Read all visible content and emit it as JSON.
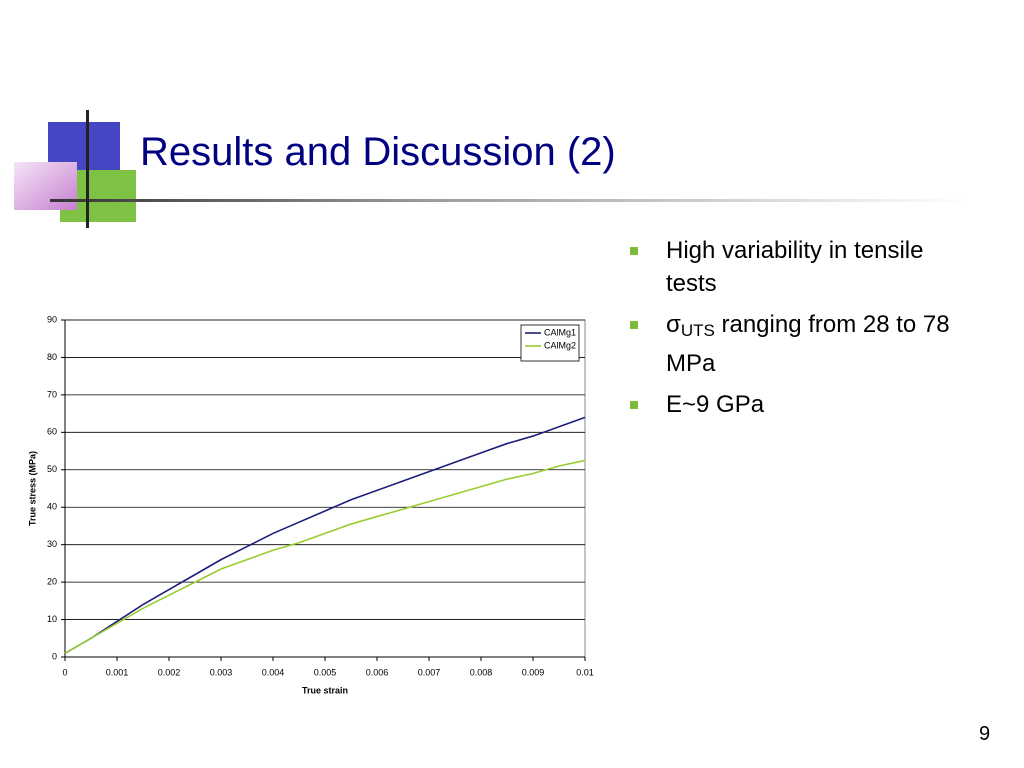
{
  "title": "Results and Discussion (2)",
  "bullets": [
    {
      "text": "High variability in tensile tests"
    },
    {
      "symbol": "σ",
      "subscript": "UTS",
      "text": "ranging from 28 to 78 MPa"
    },
    {
      "text": "E~9 GPa"
    }
  ],
  "page_number": "9",
  "chart_data": {
    "type": "line",
    "xlabel": "True strain",
    "ylabel": "True stress (MPa)",
    "x": [
      0,
      0.0005,
      0.001,
      0.0015,
      0.002,
      0.0025,
      0.003,
      0.0035,
      0.004,
      0.0045,
      0.005,
      0.0055,
      0.006,
      0.0065,
      0.007,
      0.0075,
      0.008,
      0.0085,
      0.009,
      0.0095,
      0.01
    ],
    "series": [
      {
        "name": "CAlMg1",
        "color": "#1c1f7a",
        "values": [
          1,
          5,
          9.5,
          14,
          18,
          22,
          26,
          29.5,
          33,
          36,
          39,
          42,
          44.5,
          47,
          49.5,
          52,
          54.5,
          57,
          59,
          61.5,
          64
        ]
      },
      {
        "name": "CAlMg2",
        "color": "#9acd32",
        "values": [
          1,
          5,
          9,
          13,
          16.5,
          20,
          23.5,
          26,
          28.5,
          30.5,
          33,
          35.5,
          37.5,
          39.5,
          41.5,
          43.5,
          45.5,
          47.5,
          49,
          51,
          52.5
        ]
      }
    ],
    "xlim": [
      0,
      0.01
    ],
    "xticks": [
      0,
      0.001,
      0.002,
      0.003,
      0.004,
      0.005,
      0.006,
      0.007,
      0.008,
      0.009,
      0.01
    ],
    "ylim": [
      0,
      90
    ],
    "yticks": [
      0,
      10,
      20,
      30,
      40,
      50,
      60,
      70,
      80,
      90
    ],
    "grid": true,
    "legend": "upper right"
  }
}
